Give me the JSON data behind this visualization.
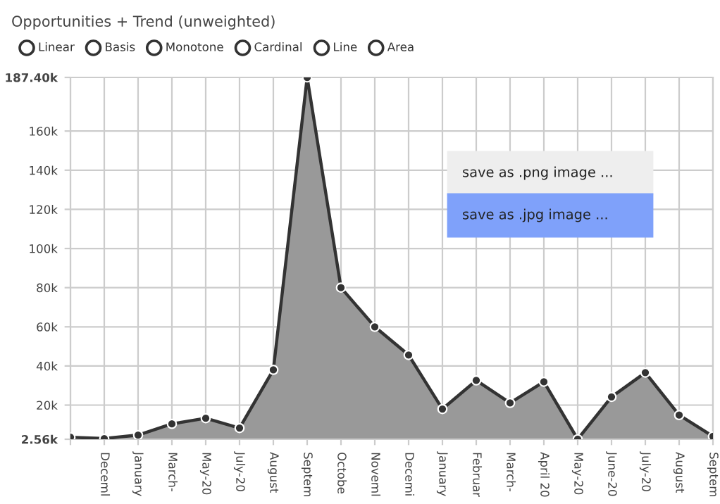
{
  "chart_data": {
    "type": "area",
    "title": "Opportunities + Trend (unweighted)",
    "categories": [
      null,
      "Deceml",
      "January",
      "March-",
      "May-20",
      "July-20",
      "August",
      "Septem",
      "Octobe",
      "Noveml",
      "Decemi",
      "January",
      "Februar",
      "March-",
      "April 20",
      "May-20",
      "June-20",
      "July-20",
      "August",
      "Septem"
    ],
    "series": [
      {
        "color": "#999999",
        "values": [
          3.6,
          2.9,
          4.7,
          10.4,
          13.3,
          8.3,
          38,
          187.4,
          80,
          60,
          45.6,
          18,
          32.6,
          21.1,
          31.9,
          2.56,
          24.2,
          36.6,
          14.9,
          4
        ]
      }
    ],
    "ylim": [
      2.56,
      187.4
    ],
    "yticks": [
      {
        "value": 2.56,
        "label": "2.56k"
      },
      {
        "value": 20,
        "label": "20k"
      },
      {
        "value": 40,
        "label": "40k"
      },
      {
        "value": 60,
        "label": "60k"
      },
      {
        "value": 80,
        "label": "80k"
      },
      {
        "value": 100,
        "label": "100k"
      },
      {
        "value": 120,
        "label": "120k"
      },
      {
        "value": 140,
        "label": "140k"
      },
      {
        "value": 160,
        "label": "160k"
      },
      {
        "value": 187.4,
        "label": "187.40k"
      }
    ],
    "grid": true,
    "marker": "circle",
    "line_style": "solid",
    "annotations": [
      "Linear",
      "Basis",
      "Monotone",
      "Cardinal",
      "Line",
      "Area",
      "save as .png image ...",
      "save as .jpg image ..."
    ]
  }
}
